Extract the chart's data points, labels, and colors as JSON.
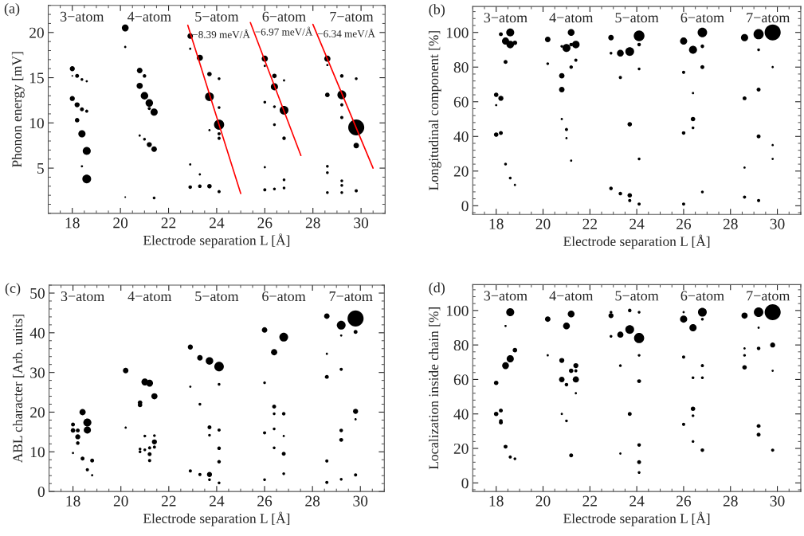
{
  "chart_data": [
    {
      "type": "bubble",
      "title": "(a)",
      "xlabel": "Electrode separation L [Å]",
      "ylabel": "Phonon energy [mV]",
      "xlim": [
        17,
        31
      ],
      "ylim": [
        0,
        23
      ],
      "xticks": [
        18,
        20,
        22,
        24,
        26,
        28,
        30
      ],
      "yticks": [
        5,
        10,
        15,
        20
      ],
      "marker": "circle",
      "series": [
        {
          "color": "#000000",
          "x": [
            18.0,
            18.0,
            18.2,
            18.2,
            18.2,
            18.4,
            18.4,
            18.4,
            18.4,
            18.6,
            18.6,
            18.6,
            18.6,
            18.0,
            20.2,
            20.2,
            20.8,
            20.8,
            21.0,
            21.0,
            21.2,
            21.4,
            21.2,
            21.4,
            21.0,
            20.8,
            21.4,
            20.2,
            21.2,
            22.9,
            22.9,
            23.3,
            23.7,
            23.7,
            24.1,
            24.1,
            24.1,
            24.1,
            24.1,
            22.9,
            23.3,
            23.7,
            24.1,
            23.3,
            22.9,
            23.7,
            26.0,
            26.0,
            26.4,
            26.4,
            26.8,
            26.0,
            26.4,
            26.4,
            26.8,
            26.8,
            26.0,
            26.4,
            26.8,
            26.8,
            26.0,
            28.6,
            28.6,
            29.2,
            29.2,
            29.2,
            29.2,
            29.8,
            29.8,
            29.8,
            29.8,
            28.6,
            28.6,
            28.6,
            29.2,
            29.2,
            29.2,
            28.6
          ],
          "values": [
            16.0,
            12.7,
            15.2,
            12.0,
            10.3,
            14.8,
            11.5,
            8.8,
            5.2,
            6.9,
            3.8,
            11.3,
            14.6,
            15.2,
            20.5,
            18.4,
            15.8,
            14.1,
            15.2,
            13.0,
            12.2,
            11.2,
            7.6,
            7.1,
            8.2,
            8.6,
            1.7,
            1.8,
            11.6,
            19.6,
            18.2,
            17.2,
            15.4,
            12.9,
            9.8,
            14.9,
            11.7,
            8.8,
            8.3,
            2.9,
            3.0,
            3.0,
            2.4,
            4.3,
            5.4,
            9.2,
            17.1,
            16.3,
            15.2,
            14.0,
            11.4,
            12.3,
            11.8,
            9.8,
            8.3,
            3.7,
            2.6,
            2.7,
            2.8,
            14.7,
            5.1,
            17.1,
            13.1,
            15.2,
            13.1,
            12.0,
            10.6,
            9.5,
            7.5,
            14.9,
            2.5,
            5.2,
            4.5,
            2.3,
            3.6,
            3.1,
            2.3,
            16.4
          ],
          "sizes": [
            0.1,
            0.1,
            0.06,
            0.1,
            0.08,
            0.03,
            0.06,
            0.2,
            0.02,
            0.25,
            0.3,
            0.04,
            0.02,
            0.01,
            0.18,
            0.02,
            0.12,
            0.15,
            0.05,
            0.22,
            0.22,
            0.2,
            0.1,
            0.12,
            0.03,
            0.02,
            0.03,
            0.01,
            0.04,
            0.12,
            0.02,
            0.15,
            0.08,
            0.3,
            0.4,
            0.03,
            0.03,
            0.04,
            0.04,
            0.05,
            0.05,
            0.08,
            0.04,
            0.02,
            0.02,
            0.02,
            0.15,
            0.02,
            0.08,
            0.2,
            0.3,
            0.03,
            0.03,
            0.03,
            0.05,
            0.03,
            0.04,
            0.03,
            0.03,
            0.02,
            0.02,
            0.15,
            0.08,
            0.05,
            0.3,
            0.04,
            0.04,
            1.0,
            0.12,
            0.03,
            0.04,
            0.03,
            0.03,
            0.03,
            0.03,
            0.03,
            0.03,
            0.02
          ]
        },
        {
          "type": "line",
          "name": "−8.39 meV/Å",
          "marker": "none",
          "color": "#ff0000",
          "x": [
            22.8,
            25.0
          ],
          "values": [
            20.8,
            2.2
          ]
        },
        {
          "type": "line",
          "name": "−6.97 meV/Å",
          "marker": "none",
          "color": "#ff0000",
          "x": [
            25.4,
            27.5
          ],
          "values": [
            21.1,
            6.4
          ]
        },
        {
          "type": "line",
          "name": "−6.34 meV/Å",
          "marker": "none",
          "color": "#ff0000",
          "x": [
            28.0,
            30.5
          ],
          "values": [
            20.9,
            5.0
          ]
        }
      ],
      "annotations": [
        "3−atom",
        "4−atom",
        "5−atom",
        "6−atom",
        "7−atom"
      ]
    },
    {
      "type": "bubble",
      "title": "(b)",
      "xlabel": "Electrode separation L [Å]",
      "ylabel": "Longitudinal component [%]",
      "xlim": [
        17,
        31
      ],
      "ylim": [
        -5,
        115
      ],
      "xticks": [
        18,
        20,
        22,
        24,
        26,
        28,
        30
      ],
      "yticks": [
        0,
        20,
        40,
        60,
        80,
        100
      ],
      "marker": "circle",
      "series": [
        {
          "color": "#000000",
          "x": [
            18.0,
            18.0,
            18.0,
            18.2,
            18.2,
            18.2,
            18.4,
            18.4,
            18.4,
            18.6,
            18.6,
            18.6,
            18.8,
            18.8,
            20.2,
            20.2,
            20.8,
            20.8,
            20.8,
            20.8,
            21.0,
            21.0,
            21.2,
            21.2,
            21.2,
            21.4,
            21.4,
            21.0,
            21.2,
            22.9,
            22.9,
            22.9,
            23.3,
            23.3,
            23.3,
            23.7,
            23.7,
            23.7,
            23.7,
            24.1,
            24.1,
            24.1,
            24.1,
            24.1,
            26.0,
            26.0,
            26.0,
            26.0,
            26.4,
            26.4,
            26.4,
            26.4,
            26.8,
            26.8,
            26.8,
            26.8,
            28.6,
            28.6,
            28.6,
            28.6,
            29.2,
            29.2,
            29.2,
            29.2,
            29.2,
            29.8,
            29.8,
            29.8,
            29.8
          ],
          "values": [
            64,
            41,
            58,
            99,
            62,
            42,
            95,
            83,
            24,
            100,
            93,
            16,
            94,
            12,
            96,
            82,
            75,
            67,
            92,
            50,
            91,
            44,
            100,
            80,
            93,
            93,
            84,
            39,
            26,
            97,
            88,
            10,
            88,
            74,
            7,
            89,
            47,
            6,
            3,
            98,
            93,
            79,
            27,
            1,
            95,
            77,
            42,
            1,
            90,
            50,
            45,
            65,
            100,
            92,
            80,
            8,
            97,
            62,
            22,
            5,
            99,
            67,
            40,
            90,
            3,
            100,
            35,
            27,
            80
          ],
          "sizes": [
            0.08,
            0.08,
            0.02,
            0.06,
            0.1,
            0.06,
            0.2,
            0.06,
            0.03,
            0.25,
            0.22,
            0.03,
            0.08,
            0.02,
            0.12,
            0.03,
            0.12,
            0.12,
            0.03,
            0.02,
            0.25,
            0.04,
            0.18,
            0.05,
            0.05,
            0.22,
            0.04,
            0.02,
            0.02,
            0.12,
            0.03,
            0.05,
            0.18,
            0.04,
            0.05,
            0.3,
            0.08,
            0.08,
            0.04,
            0.45,
            0.05,
            0.03,
            0.03,
            0.04,
            0.2,
            0.04,
            0.05,
            0.04,
            0.25,
            0.08,
            0.03,
            0.02,
            0.35,
            0.05,
            0.06,
            0.03,
            0.2,
            0.06,
            0.02,
            0.04,
            0.4,
            0.06,
            0.06,
            0.03,
            0.04,
            1.0,
            0.02,
            0.02,
            0.02
          ]
        }
      ],
      "annotations": [
        "3−atom",
        "4−atom",
        "5−atom",
        "6−atom",
        "7−atom"
      ]
    },
    {
      "type": "bubble",
      "title": "(c)",
      "xlabel": "Electrode separation L [Å]",
      "ylabel": "ABL character [Arb. units]",
      "xlim": [
        17,
        31
      ],
      "ylim": [
        0,
        52
      ],
      "xticks": [
        18,
        20,
        22,
        24,
        26,
        28,
        30
      ],
      "yticks": [
        0,
        10,
        20,
        30,
        40,
        50
      ],
      "marker": "circle",
      "series": [
        {
          "color": "#000000",
          "x": [
            18.0,
            18.0,
            18.2,
            18.2,
            18.2,
            18.4,
            18.4,
            18.6,
            18.6,
            18.6,
            18.8,
            18.8,
            18.0,
            20.2,
            20.2,
            20.8,
            20.8,
            20.8,
            20.8,
            21.0,
            21.0,
            21.0,
            21.2,
            21.2,
            21.2,
            21.2,
            21.4,
            21.4,
            21.4,
            21.4,
            22.9,
            22.9,
            22.9,
            23.3,
            23.3,
            23.3,
            23.7,
            23.7,
            23.7,
            23.7,
            23.7,
            24.1,
            24.1,
            24.1,
            24.1,
            24.1,
            24.1,
            26.0,
            26.0,
            26.0,
            26.0,
            26.4,
            26.4,
            26.4,
            26.4,
            26.4,
            26.8,
            26.8,
            26.8,
            26.8,
            26.8,
            28.6,
            28.6,
            28.6,
            28.6,
            28.6,
            29.2,
            29.2,
            29.2,
            29.2,
            29.2,
            29.2,
            29.8,
            29.8,
            29.8,
            29.8,
            29.8
          ],
          "values": [
            16.9,
            15.4,
            15.4,
            13.8,
            12.2,
            20.0,
            8.3,
            17.4,
            15.5,
            5.5,
            7.8,
            4.1,
            9.7,
            30.5,
            16.1,
            22.4,
            21.8,
            10.7,
            10.0,
            27.6,
            14.0,
            10.5,
            27.3,
            9.4,
            7.8,
            11.0,
            24.0,
            12.5,
            11.2,
            14.1,
            36.4,
            26.4,
            5.2,
            33.7,
            22.0,
            4.3,
            32.9,
            16.2,
            14.2,
            4.3,
            3.0,
            31.5,
            27.0,
            15.5,
            10.9,
            7.5,
            2.2,
            40.7,
            27.4,
            14.8,
            3.0,
            35.1,
            21.4,
            19.6,
            15.8,
            11.0,
            38.9,
            19.6,
            9.5,
            14.0,
            4.5,
            44.2,
            28.9,
            34.7,
            7.7,
            2.3,
            41.9,
            30.8,
            15.4,
            13.0,
            3.1,
            39.3,
            43.6,
            40.2,
            20.2,
            4.2,
            18.2
          ],
          "sizes": [
            0.06,
            0.08,
            0.06,
            0.1,
            0.05,
            0.15,
            0.06,
            0.25,
            0.2,
            0.04,
            0.06,
            0.02,
            0.02,
            0.12,
            0.02,
            0.08,
            0.08,
            0.03,
            0.03,
            0.18,
            0.03,
            0.03,
            0.18,
            0.06,
            0.04,
            0.04,
            0.15,
            0.1,
            0.04,
            0.03,
            0.1,
            0.02,
            0.04,
            0.12,
            0.03,
            0.04,
            0.22,
            0.06,
            0.03,
            0.1,
            0.03,
            0.35,
            0.03,
            0.04,
            0.05,
            0.05,
            0.03,
            0.12,
            0.03,
            0.04,
            0.03,
            0.15,
            0.06,
            0.03,
            0.03,
            0.03,
            0.3,
            0.05,
            0.06,
            0.02,
            0.03,
            0.12,
            0.06,
            0.02,
            0.04,
            0.04,
            0.3,
            0.04,
            0.05,
            0.06,
            0.03,
            0.02,
            1.0,
            0.06,
            0.1,
            0.04,
            0.02
          ]
        }
      ],
      "annotations": [
        "3−atom",
        "4−atom",
        "5−atom",
        "6−atom",
        "7−atom"
      ]
    },
    {
      "type": "bubble",
      "title": "(d)",
      "xlabel": "Electrode separation L [Å]",
      "ylabel": "Localization inside chain [%]",
      "xlim": [
        17,
        31
      ],
      "ylim": [
        -5,
        115
      ],
      "xticks": [
        18,
        20,
        22,
        24,
        26,
        28,
        30
      ],
      "yticks": [
        0,
        20,
        40,
        60,
        80,
        100
      ],
      "marker": "circle",
      "series": [
        {
          "color": "#000000",
          "x": [
            18.0,
            18.0,
            18.2,
            18.2,
            18.2,
            18.4,
            18.4,
            18.4,
            18.6,
            18.6,
            18.6,
            18.8,
            18.8,
            20.2,
            20.2,
            20.8,
            20.8,
            20.8,
            21.0,
            21.0,
            21.0,
            21.2,
            21.2,
            21.2,
            21.4,
            21.4,
            21.4,
            21.4,
            22.9,
            22.9,
            22.9,
            23.3,
            23.3,
            23.3,
            23.7,
            23.7,
            23.7,
            24.1,
            24.1,
            24.1,
            24.1,
            24.1,
            24.1,
            24.1,
            26.0,
            26.0,
            26.0,
            26.0,
            26.4,
            26.4,
            26.4,
            26.4,
            26.4,
            26.8,
            26.8,
            26.8,
            26.8,
            26.8,
            28.6,
            28.6,
            28.6,
            28.6,
            29.2,
            29.2,
            29.2,
            29.2,
            29.2,
            29.8,
            29.8,
            29.8,
            29.8
          ],
          "values": [
            58,
            40,
            42,
            36,
            35,
            68,
            21,
            91,
            99,
            72,
            15,
            77,
            14,
            95,
            74,
            71,
            60,
            40,
            91,
            57,
            36,
            98,
            65,
            16,
            68,
            60,
            65,
            52,
            97,
            99,
            85,
            86,
            68,
            17,
            89,
            100,
            40,
            84,
            59,
            74,
            22,
            12,
            6,
            99,
            95,
            73,
            34,
            99,
            90,
            43,
            39,
            61,
            24,
            99,
            68,
            61,
            19,
            95,
            97,
            67,
            74,
            78,
            99,
            78,
            33,
            28,
            90,
            99,
            80,
            65,
            19
          ],
          "sizes": [
            0.08,
            0.08,
            0.06,
            0.05,
            0.06,
            0.18,
            0.06,
            0.02,
            0.25,
            0.2,
            0.04,
            0.08,
            0.03,
            0.12,
            0.02,
            0.1,
            0.12,
            0.02,
            0.18,
            0.05,
            0.03,
            0.18,
            0.08,
            0.06,
            0.1,
            0.15,
            0.04,
            0.02,
            0.1,
            0.03,
            0.03,
            0.15,
            0.03,
            0.02,
            0.3,
            0.05,
            0.06,
            0.4,
            0.06,
            0.03,
            0.05,
            0.06,
            0.03,
            0.03,
            0.2,
            0.04,
            0.04,
            0.02,
            0.2,
            0.08,
            0.03,
            0.03,
            0.03,
            0.3,
            0.04,
            0.03,
            0.05,
            0.03,
            0.15,
            0.08,
            0.03,
            0.02,
            0.35,
            0.05,
            0.06,
            0.06,
            0.02,
            1.0,
            0.1,
            0.02,
            0.04
          ]
        }
      ],
      "annotations": [
        "3−atom",
        "4−atom",
        "5−atom",
        "6−atom",
        "7−atom"
      ]
    }
  ]
}
